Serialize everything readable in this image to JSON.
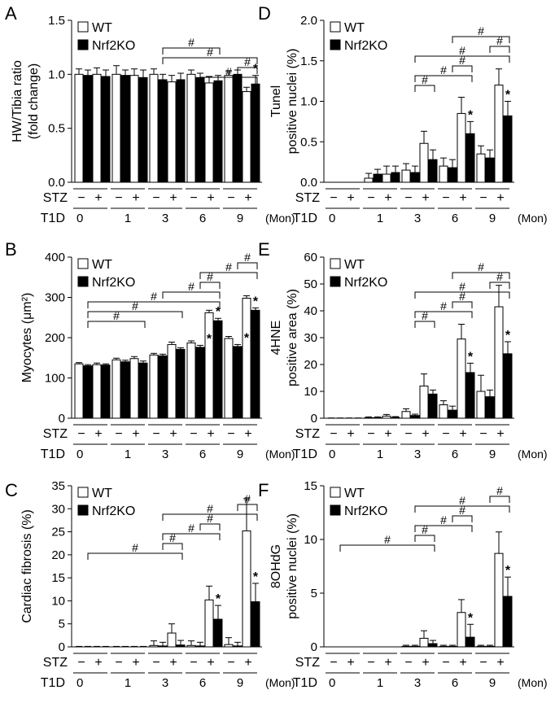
{
  "figure": {
    "legend": {
      "wt": "WT",
      "ko": "Nrf2KO"
    },
    "stz_label": "STZ",
    "t1d_label": "T1D",
    "minus": "−",
    "plus": "+",
    "unit": "(Mon)",
    "months": [
      "0",
      "1",
      "3",
      "6",
      "9"
    ],
    "sig_hash": "#",
    "sig_star": "*"
  },
  "chart_data": [
    {
      "type": "bar",
      "panel": "A",
      "ylabel": [
        "HW/Tibia ratio",
        "(fold change)"
      ],
      "ylim": [
        0,
        1.5
      ],
      "ticks": [
        0.0,
        0.5,
        1.0,
        1.5
      ],
      "tick_labels": [
        "0.0",
        "0.5",
        "1.0",
        "1.5"
      ],
      "categories": [
        "0",
        "1",
        "3",
        "6",
        "9"
      ],
      "series": [
        {
          "name": "WT",
          "stz": "-",
          "values": [
            1.0,
            1.0,
            1.0,
            1.0,
            0.99
          ],
          "err": [
            0.05,
            0.08,
            0.05,
            0.04,
            0.04
          ]
        },
        {
          "name": "WT",
          "stz": "+",
          "values": [
            1.0,
            0.99,
            0.93,
            0.92,
            0.84
          ],
          "err": [
            0.06,
            0.06,
            0.06,
            0.06,
            0.04
          ]
        },
        {
          "name": "Nrf2KO",
          "stz": "-",
          "values": [
            0.99,
            0.99,
            0.95,
            0.97,
            1.0
          ],
          "err": [
            0.05,
            0.05,
            0.05,
            0.04,
            0.04
          ]
        },
        {
          "name": "Nrf2KO",
          "stz": "+",
          "values": [
            0.98,
            0.97,
            0.95,
            0.94,
            0.91
          ],
          "err": [
            0.06,
            0.07,
            0.06,
            0.05,
            0.08
          ]
        }
      ]
    },
    {
      "type": "bar",
      "panel": "B",
      "ylabel": [
        "Myocytes (μm²)"
      ],
      "ylim": [
        0,
        400
      ],
      "ticks": [
        0,
        100,
        200,
        300,
        400
      ],
      "tick_labels": [
        "0",
        "100",
        "200",
        "300",
        "400"
      ],
      "categories": [
        "0",
        "1",
        "3",
        "6",
        "9"
      ],
      "series": [
        {
          "name": "WT",
          "stz": "-",
          "values": [
            135,
            145,
            157,
            187,
            198
          ],
          "err": [
            3,
            4,
            4,
            5,
            5
          ]
        },
        {
          "name": "WT",
          "stz": "+",
          "values": [
            133,
            148,
            183,
            262,
            298
          ],
          "err": [
            4,
            5,
            6,
            6,
            6
          ]
        },
        {
          "name": "Nrf2KO",
          "stz": "-",
          "values": [
            130,
            140,
            155,
            176,
            178
          ],
          "err": [
            3,
            4,
            4,
            5,
            5
          ]
        },
        {
          "name": "Nrf2KO",
          "stz": "+",
          "values": [
            132,
            137,
            171,
            242,
            268
          ],
          "err": [
            3,
            5,
            4,
            6,
            6
          ]
        }
      ]
    },
    {
      "type": "bar",
      "panel": "C",
      "ylabel": [
        "Cardiac fibrosis (%)"
      ],
      "ylim": [
        0,
        35
      ],
      "ticks": [
        0,
        5,
        10,
        15,
        20,
        25,
        30,
        35
      ],
      "tick_labels": [
        "0",
        "5",
        "10",
        "15",
        "20",
        "25",
        "30",
        "35"
      ],
      "categories": [
        "0",
        "1",
        "3",
        "6",
        "9"
      ],
      "series": [
        {
          "name": "WT",
          "stz": "-",
          "values": [
            0.0,
            0.0,
            0.3,
            0.3,
            0.5
          ],
          "err": [
            0.1,
            0.1,
            1.0,
            1.0,
            1.5
          ]
        },
        {
          "name": "WT",
          "stz": "+",
          "values": [
            0.0,
            0.0,
            3.0,
            10.2,
            25.2
          ],
          "err": [
            0.1,
            0.1,
            2.0,
            3.0,
            7.0
          ]
        },
        {
          "name": "Nrf2KO",
          "stz": "-",
          "values": [
            0.0,
            0.0,
            0.2,
            0.2,
            0.2
          ],
          "err": [
            0.1,
            0.1,
            0.8,
            0.8,
            0.8
          ]
        },
        {
          "name": "Nrf2KO",
          "stz": "+",
          "values": [
            0.0,
            0.0,
            0.4,
            6.0,
            9.8
          ],
          "err": [
            0.1,
            0.1,
            1.0,
            3.0,
            4.0
          ]
        }
      ]
    },
    {
      "type": "bar",
      "panel": "D",
      "ylabel": [
        "Tunel",
        "positive nuclei (%)"
      ],
      "ylim": [
        0,
        2.0
      ],
      "ticks": [
        0.0,
        0.5,
        1.0,
        1.5,
        2.0
      ],
      "tick_labels": [
        "0.0",
        "0.5",
        "1.0",
        "1.5",
        "2.0"
      ],
      "categories": [
        "0",
        "1",
        "3",
        "6",
        "9"
      ],
      "series": [
        {
          "name": "WT",
          "stz": "-",
          "values": [
            0.0,
            0.05,
            0.15,
            0.2,
            0.35
          ],
          "err": [
            0.0,
            0.06,
            0.08,
            0.1,
            0.1
          ]
        },
        {
          "name": "WT",
          "stz": "+",
          "values": [
            0.0,
            0.1,
            0.48,
            0.85,
            1.2
          ],
          "err": [
            0.0,
            0.1,
            0.15,
            0.2,
            0.2
          ]
        },
        {
          "name": "Nrf2KO",
          "stz": "-",
          "values": [
            0.0,
            0.1,
            0.12,
            0.18,
            0.3
          ],
          "err": [
            0.0,
            0.06,
            0.08,
            0.1,
            0.1
          ]
        },
        {
          "name": "Nrf2KO",
          "stz": "+",
          "values": [
            0.0,
            0.12,
            0.28,
            0.6,
            0.82
          ],
          "err": [
            0.0,
            0.08,
            0.12,
            0.15,
            0.18
          ]
        }
      ]
    },
    {
      "type": "bar",
      "panel": "E",
      "ylabel": [
        "4HNE",
        "positive area (%)"
      ],
      "ylim": [
        0,
        60
      ],
      "ticks": [
        0,
        10,
        20,
        30,
        40,
        50,
        60
      ],
      "tick_labels": [
        "0",
        "10",
        "20",
        "30",
        "40",
        "50",
        "60"
      ],
      "categories": [
        "0",
        "1",
        "3",
        "6",
        "9"
      ],
      "series": [
        {
          "name": "WT",
          "stz": "-",
          "values": [
            0.0,
            0.2,
            2.5,
            5.0,
            10.0
          ],
          "err": [
            0.1,
            0.3,
            1.0,
            1.5,
            6.0
          ]
        },
        {
          "name": "WT",
          "stz": "+",
          "values": [
            0.0,
            0.8,
            12.0,
            29.5,
            41.5
          ],
          "err": [
            0.1,
            0.6,
            4.5,
            5.5,
            8.0
          ]
        },
        {
          "name": "Nrf2KO",
          "stz": "-",
          "values": [
            0.0,
            0.2,
            1.0,
            3.0,
            8.0
          ],
          "err": [
            0.1,
            0.3,
            0.5,
            1.5,
            2.5
          ]
        },
        {
          "name": "Nrf2KO",
          "stz": "+",
          "values": [
            0.0,
            0.3,
            9.0,
            17.0,
            24.0
          ],
          "err": [
            0.1,
            0.3,
            1.5,
            3.5,
            4.5
          ]
        }
      ]
    },
    {
      "type": "bar",
      "panel": "F",
      "ylabel": [
        "8OHdG",
        "positive nuclei (%)"
      ],
      "ylim": [
        0,
        15
      ],
      "ticks": [
        0,
        5,
        10,
        15
      ],
      "tick_labels": [
        "0",
        "5",
        "10",
        "15"
      ],
      "categories": [
        "0",
        "1",
        "3",
        "6",
        "9"
      ],
      "series": [
        {
          "name": "WT",
          "stz": "-",
          "values": [
            0.0,
            0.0,
            0.05,
            0.05,
            0.05
          ],
          "err": [
            0.0,
            0.0,
            0.1,
            0.1,
            0.1
          ]
        },
        {
          "name": "WT",
          "stz": "+",
          "values": [
            0.0,
            0.0,
            0.8,
            3.2,
            8.7
          ],
          "err": [
            0.0,
            0.0,
            0.7,
            1.2,
            2.0
          ]
        },
        {
          "name": "Nrf2KO",
          "stz": "-",
          "values": [
            0.0,
            0.0,
            0.05,
            0.05,
            0.05
          ],
          "err": [
            0.0,
            0.0,
            0.1,
            0.1,
            0.1
          ]
        },
        {
          "name": "Nrf2KO",
          "stz": "+",
          "values": [
            0.0,
            0.0,
            0.3,
            0.9,
            4.7
          ],
          "err": [
            0.0,
            0.0,
            0.3,
            1.2,
            1.8
          ]
        }
      ]
    }
  ]
}
